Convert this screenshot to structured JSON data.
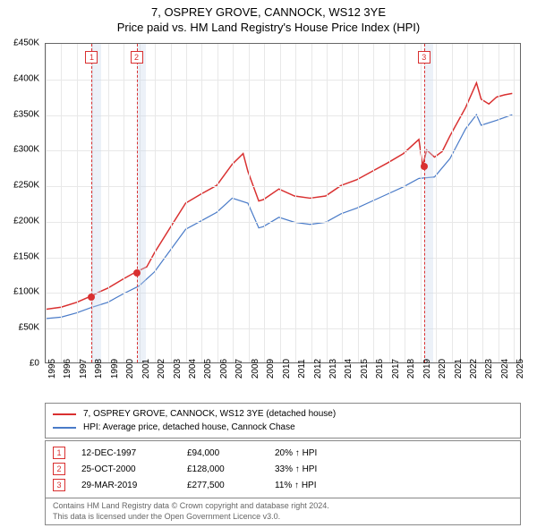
{
  "title": {
    "line1": "7, OSPREY GROVE, CANNOCK, WS12 3YE",
    "line2": "Price paid vs. HM Land Registry's House Price Index (HPI)"
  },
  "chart": {
    "type": "line",
    "background_color": "#ffffff",
    "grid_color": "#e8e8e8",
    "border_color": "#666666",
    "x_range": [
      1995,
      2025.5
    ],
    "y_range": [
      0,
      450000
    ],
    "y_ticks": [
      0,
      50000,
      100000,
      150000,
      200000,
      250000,
      300000,
      350000,
      400000,
      450000
    ],
    "y_tick_labels": [
      "£0",
      "£50K",
      "£100K",
      "£150K",
      "£200K",
      "£250K",
      "£300K",
      "£350K",
      "£400K",
      "£450K"
    ],
    "y_tick_fontsize": 10,
    "x_ticks": [
      1995,
      1996,
      1997,
      1998,
      1999,
      2000,
      2001,
      2002,
      2003,
      2004,
      2005,
      2006,
      2007,
      2008,
      2009,
      2010,
      2011,
      2012,
      2013,
      2014,
      2015,
      2016,
      2017,
      2018,
      2019,
      2020,
      2021,
      2022,
      2023,
      2024,
      2025
    ],
    "x_tick_labels": [
      "1995",
      "1996",
      "1997",
      "1998",
      "1999",
      "2000",
      "2001",
      "2002",
      "2003",
      "2004",
      "2005",
      "2006",
      "2007",
      "2008",
      "2009",
      "2010",
      "2011",
      "2012",
      "2013",
      "2014",
      "2015",
      "2016",
      "2017",
      "2018",
      "2019",
      "2020",
      "2021",
      "2022",
      "2023",
      "2024",
      "2025"
    ],
    "x_tick_fontsize": 10,
    "x_tick_rotation": -90,
    "marker_band_color": "rgba(200,215,235,0.35)",
    "marker_line_color": "#d93030",
    "marker_line_dash": "3,3",
    "series": [
      {
        "id": "property",
        "label": "7, OSPREY GROVE, CANNOCK, WS12 3YE (detached house)",
        "color": "#d93030",
        "line_width": 1.5,
        "points": [
          [
            1995,
            75000
          ],
          [
            1996,
            78000
          ],
          [
            1997,
            85000
          ],
          [
            1997.95,
            94000
          ],
          [
            1998.5,
            100000
          ],
          [
            1999,
            105000
          ],
          [
            2000,
            118000
          ],
          [
            2000.82,
            128000
          ],
          [
            2001.5,
            135000
          ],
          [
            2002,
            155000
          ],
          [
            2003,
            190000
          ],
          [
            2004,
            225000
          ],
          [
            2005,
            238000
          ],
          [
            2006,
            250000
          ],
          [
            2007,
            280000
          ],
          [
            2007.7,
            295000
          ],
          [
            2008,
            270000
          ],
          [
            2008.7,
            228000
          ],
          [
            2009,
            230000
          ],
          [
            2010,
            245000
          ],
          [
            2011,
            235000
          ],
          [
            2012,
            232000
          ],
          [
            2013,
            235000
          ],
          [
            2014,
            250000
          ],
          [
            2015,
            258000
          ],
          [
            2016,
            270000
          ],
          [
            2017,
            282000
          ],
          [
            2018,
            295000
          ],
          [
            2019,
            315000
          ],
          [
            2019.24,
            277500
          ],
          [
            2019.5,
            300000
          ],
          [
            2020,
            290000
          ],
          [
            2020.5,
            298000
          ],
          [
            2021,
            320000
          ],
          [
            2022,
            360000
          ],
          [
            2022.7,
            395000
          ],
          [
            2023,
            372000
          ],
          [
            2023.5,
            365000
          ],
          [
            2024,
            375000
          ],
          [
            2024.5,
            378000
          ],
          [
            2025,
            380000
          ]
        ]
      },
      {
        "id": "hpi",
        "label": "HPI: Average price, detached house, Cannock Chase",
        "color": "#4a7bc8",
        "line_width": 1.2,
        "points": [
          [
            1995,
            62000
          ],
          [
            1996,
            64000
          ],
          [
            1997,
            70000
          ],
          [
            1998,
            78000
          ],
          [
            1999,
            85000
          ],
          [
            2000,
            97000
          ],
          [
            2001,
            108000
          ],
          [
            2002,
            128000
          ],
          [
            2003,
            158000
          ],
          [
            2004,
            188000
          ],
          [
            2005,
            200000
          ],
          [
            2006,
            212000
          ],
          [
            2007,
            232000
          ],
          [
            2008,
            225000
          ],
          [
            2008.7,
            190000
          ],
          [
            2009,
            192000
          ],
          [
            2010,
            205000
          ],
          [
            2011,
            198000
          ],
          [
            2012,
            195000
          ],
          [
            2013,
            198000
          ],
          [
            2014,
            210000
          ],
          [
            2015,
            218000
          ],
          [
            2016,
            228000
          ],
          [
            2017,
            238000
          ],
          [
            2018,
            248000
          ],
          [
            2019,
            260000
          ],
          [
            2020,
            262000
          ],
          [
            2021,
            288000
          ],
          [
            2022,
            330000
          ],
          [
            2022.7,
            350000
          ],
          [
            2023,
            335000
          ],
          [
            2024,
            342000
          ],
          [
            2025,
            350000
          ]
        ]
      }
    ],
    "markers": [
      {
        "n": "1",
        "year": 1997.95,
        "band_width_years": 0.6,
        "price": 94000
      },
      {
        "n": "2",
        "year": 2000.82,
        "band_width_years": 0.6,
        "price": 128000
      },
      {
        "n": "3",
        "year": 2019.24,
        "band_width_years": 0.6,
        "price": 277500
      }
    ]
  },
  "legend": {
    "border_color": "#888888",
    "fontsize": 10,
    "items": [
      {
        "color": "#d93030",
        "label": "7, OSPREY GROVE, CANNOCK, WS12 3YE (detached house)"
      },
      {
        "color": "#4a7bc8",
        "label": "HPI: Average price, detached house, Cannock Chase"
      }
    ]
  },
  "events": {
    "border_color": "#888888",
    "fontsize": 10,
    "rows": [
      {
        "n": "1",
        "date": "12-DEC-1997",
        "price": "£94,000",
        "delta": "20% ↑ HPI"
      },
      {
        "n": "2",
        "date": "25-OCT-2000",
        "price": "£128,000",
        "delta": "33% ↑ HPI"
      },
      {
        "n": "3",
        "date": "29-MAR-2019",
        "price": "£277,500",
        "delta": "11% ↑ HPI"
      }
    ]
  },
  "footer": {
    "line1": "Contains HM Land Registry data © Crown copyright and database right 2024.",
    "line2": "This data is licensed under the Open Government Licence v3.0.",
    "text_color": "#666666",
    "fontsize": 9
  }
}
